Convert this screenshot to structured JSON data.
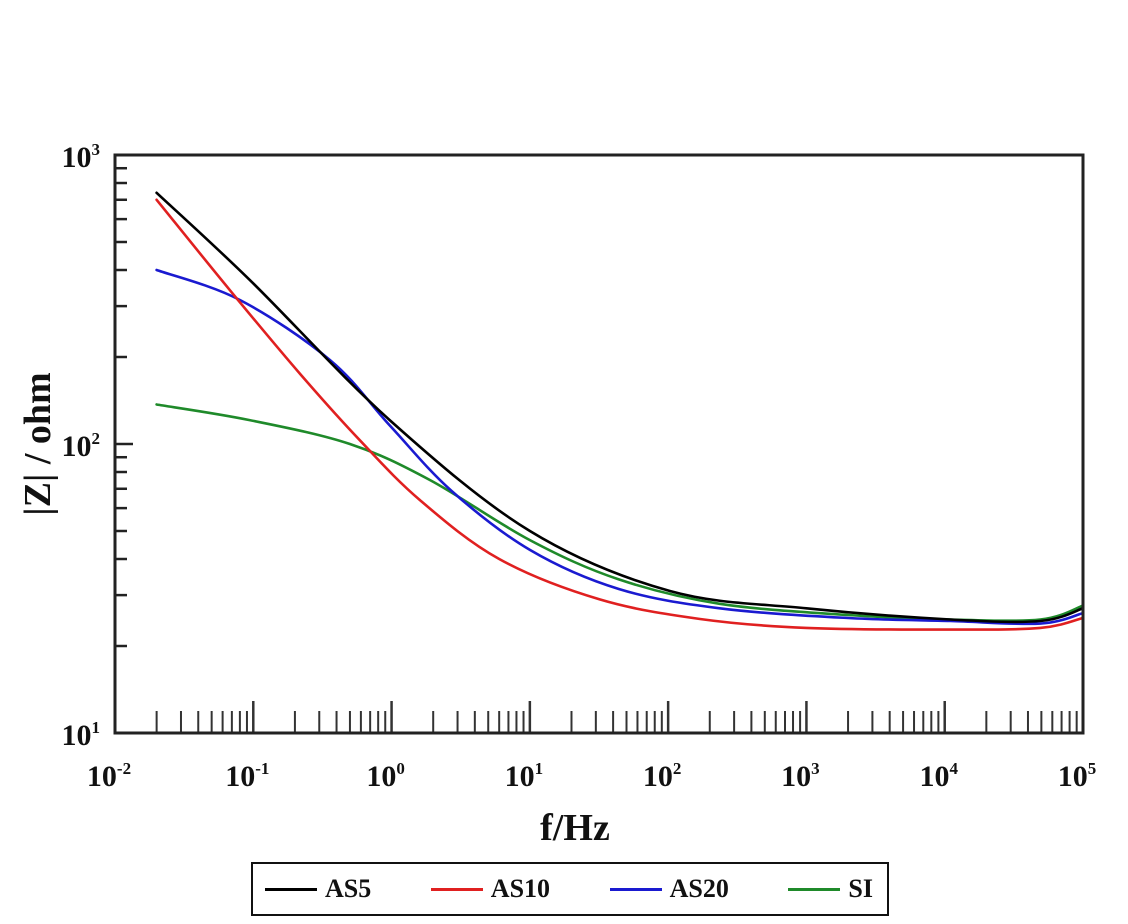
{
  "chart_data": {
    "type": "line",
    "title": "",
    "xlabel": "f/Hz",
    "ylabel": "|Z| / ohm",
    "xscale": "log",
    "yscale": "log",
    "xlim": [
      0.01,
      100000
    ],
    "ylim": [
      10,
      1000
    ],
    "x_tick_labels": [
      {
        "base": "10",
        "exp": "-2"
      },
      {
        "base": "10",
        "exp": "-1"
      },
      {
        "base": "10",
        "exp": "0"
      },
      {
        "base": "10",
        "exp": "1"
      },
      {
        "base": "10",
        "exp": "2"
      },
      {
        "base": "10",
        "exp": "3"
      },
      {
        "base": "10",
        "exp": "4"
      },
      {
        "base": "10",
        "exp": "5"
      }
    ],
    "y_tick_labels": [
      {
        "base": "10",
        "exp": "1"
      },
      {
        "base": "10",
        "exp": "2"
      },
      {
        "base": "10",
        "exp": "3"
      }
    ],
    "grid": false,
    "legend_position": "bottom-outside",
    "series": [
      {
        "name": "AS5",
        "color": "#000000",
        "x": [
          0.02,
          0.094,
          0.97,
          10,
          103,
          1000,
          11000,
          49000,
          100000
        ],
        "y": [
          740,
          370,
          121,
          50,
          31,
          27,
          24.7,
          24.4,
          27
        ]
      },
      {
        "name": "AS10",
        "color": "#e02020",
        "x": [
          0.02,
          0.068,
          0.22,
          0.59,
          1.6,
          6,
          32,
          170,
          1000,
          11000,
          49000,
          100000
        ],
        "y": [
          700,
          340,
          174,
          103,
          64,
          40,
          29,
          24.8,
          23.1,
          22.8,
          23.1,
          25
        ]
      },
      {
        "name": "AS20",
        "color": "#1a1ad0",
        "x": [
          0.02,
          0.08,
          0.36,
          0.97,
          2.7,
          10,
          44,
          236,
          2000,
          11000,
          49000,
          100000
        ],
        "y": [
          400,
          315,
          195,
          116,
          69,
          43,
          31.5,
          27,
          25,
          24.4,
          23.9,
          26
        ]
      },
      {
        "name": "SI",
        "color": "#1f8a2a",
        "x": [
          0.02,
          0.094,
          0.5,
          1.9,
          10,
          44,
          236,
          2000,
          11000,
          49000,
          100000
        ],
        "y": [
          137,
          121,
          100,
          75,
          46.5,
          34,
          28,
          25.6,
          24.7,
          24.7,
          27.6
        ]
      }
    ]
  },
  "legend": {
    "items": [
      {
        "label": "AS5",
        "color": "#000000"
      },
      {
        "label": "AS10",
        "color": "#e02020"
      },
      {
        "label": "AS20",
        "color": "#1a1ad0"
      },
      {
        "label": "SI",
        "color": "#1f8a2a"
      }
    ]
  }
}
